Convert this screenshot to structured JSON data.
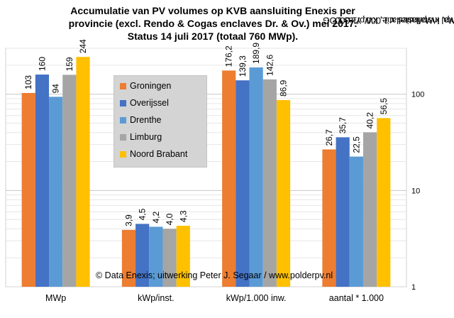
{
  "title": {
    "line1": "Accumulatie van PV volumes op KVB aansluiting  Enexis per",
    "line2": "provincie  (excl. Rendo & Cogas enclaves Dr. & Ov.) mei 2017.",
    "line3": "Status 14 juli 2017 (totaal 760 MWp)."
  },
  "credit": "© Data Enexis;  uitwerking  Peter J. Segaar / www.polderpv.nl",
  "chart_data": {
    "type": "bar",
    "categories": [
      "MWp",
      "kWp/inst.",
      "kWp/1.000 inw.",
      "aantal * 1.000"
    ],
    "series": [
      {
        "name": "Groningen",
        "color": "#ed7d31",
        "values": [
          103,
          3.9,
          176.2,
          26.7
        ],
        "labels": [
          "103",
          "3,9",
          "176,2",
          "26,7"
        ]
      },
      {
        "name": "Overijssel",
        "color": "#4472c4",
        "values": [
          160,
          4.5,
          139.3,
          35.7
        ],
        "labels": [
          "160",
          "4,5",
          "139,3",
          "35,7"
        ]
      },
      {
        "name": "Drenthe",
        "color": "#5b9bd5",
        "values": [
          94,
          4.2,
          189.9,
          22.5
        ],
        "labels": [
          "94",
          "4,2",
          "189,9",
          "22,5"
        ]
      },
      {
        "name": "Limburg",
        "color": "#a5a5a5",
        "values": [
          159,
          4.0,
          142.6,
          40.2
        ],
        "labels": [
          "159",
          "4,0",
          "142,6",
          "40,2"
        ]
      },
      {
        "name": "Noord Brabant",
        "color": "#ffc000",
        "values": [
          244,
          4.3,
          86.9,
          56.5
        ],
        "labels": [
          "244",
          "4,3",
          "86,9",
          "56,5"
        ]
      }
    ],
    "y_scale": "log",
    "ylim": [
      1,
      300
    ],
    "y_ticks": [
      {
        "value": 1,
        "label": "1"
      },
      {
        "value": 10,
        "label": "10"
      },
      {
        "value": 100,
        "label": "100"
      }
    ],
    "ylabel_lines": [
      "Volumes 2017 in MWp, kWp/installatie, kWp/1.000",
      "inwoners, berekend aantal installaties x 1.000. Y-as LOG"
    ],
    "grid": true,
    "y_axis_side": "right",
    "legend_position": "top-left inside"
  }
}
